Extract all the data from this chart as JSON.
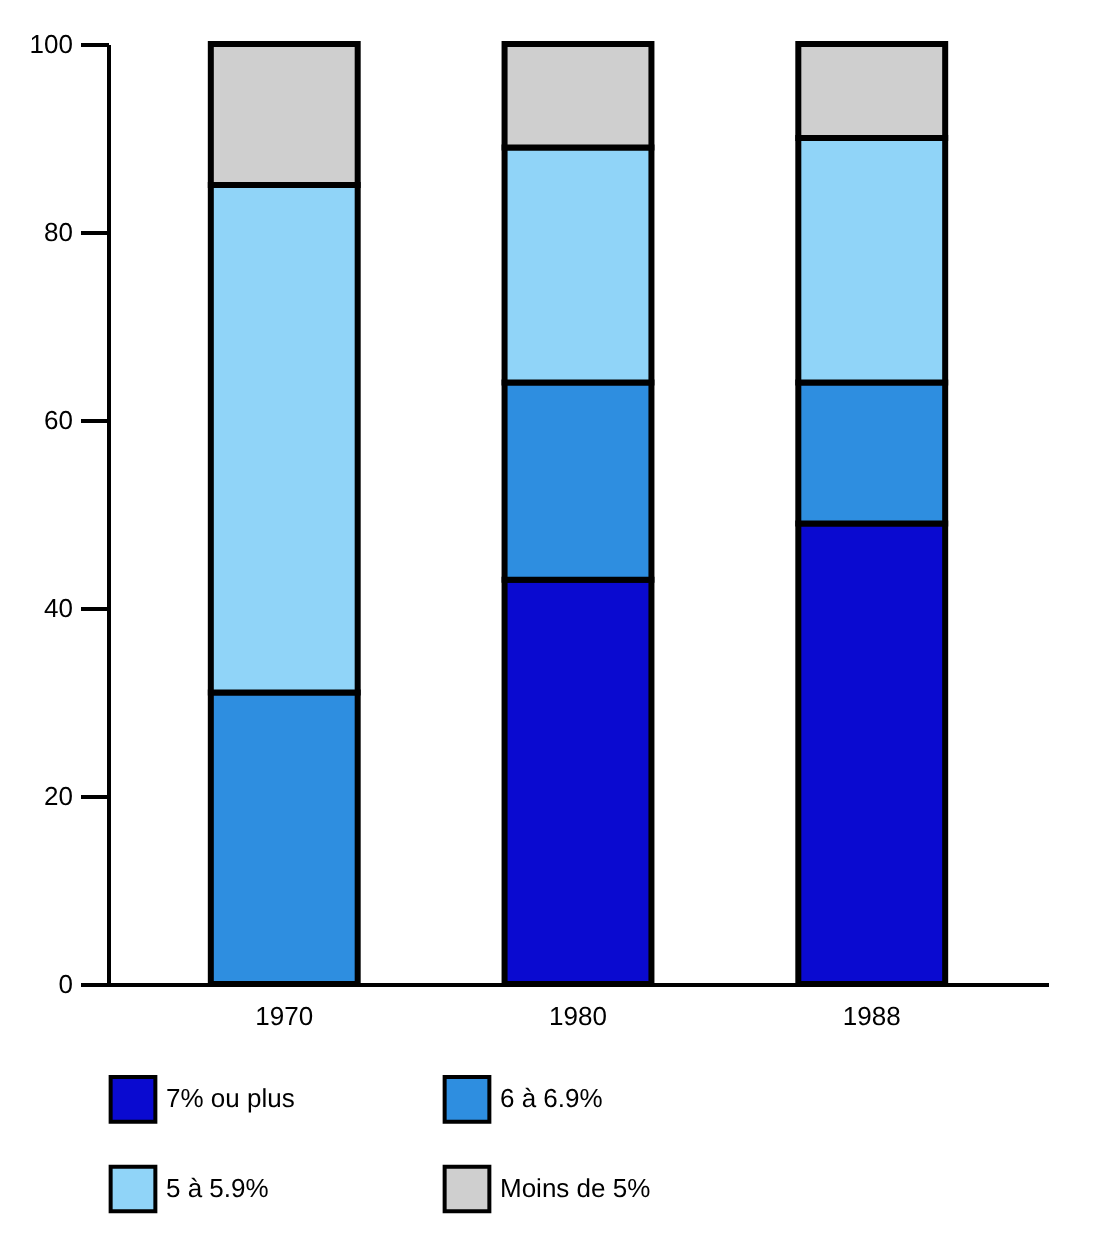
{
  "chart_data": {
    "type": "bar",
    "stacked": true,
    "categories": [
      "1970",
      "1980",
      "1988"
    ],
    "series": [
      {
        "name": "7% ou plus",
        "color": "#0a0ad0",
        "values": [
          0,
          43,
          49
        ]
      },
      {
        "name": "6 à 6.9%",
        "color": "#2e8ee0",
        "values": [
          31,
          21,
          15
        ]
      },
      {
        "name": "5 à 5.9%",
        "color": "#90d4f8",
        "values": [
          54,
          25,
          26
        ]
      },
      {
        "name": "Moins de 5%",
        "color": "#cfcfcf",
        "values": [
          15,
          11,
          10
        ]
      }
    ],
    "ylim": [
      0,
      100
    ],
    "yticks": [
      0,
      20,
      40,
      60,
      80,
      100
    ],
    "grid": false,
    "legend": "bottom"
  }
}
